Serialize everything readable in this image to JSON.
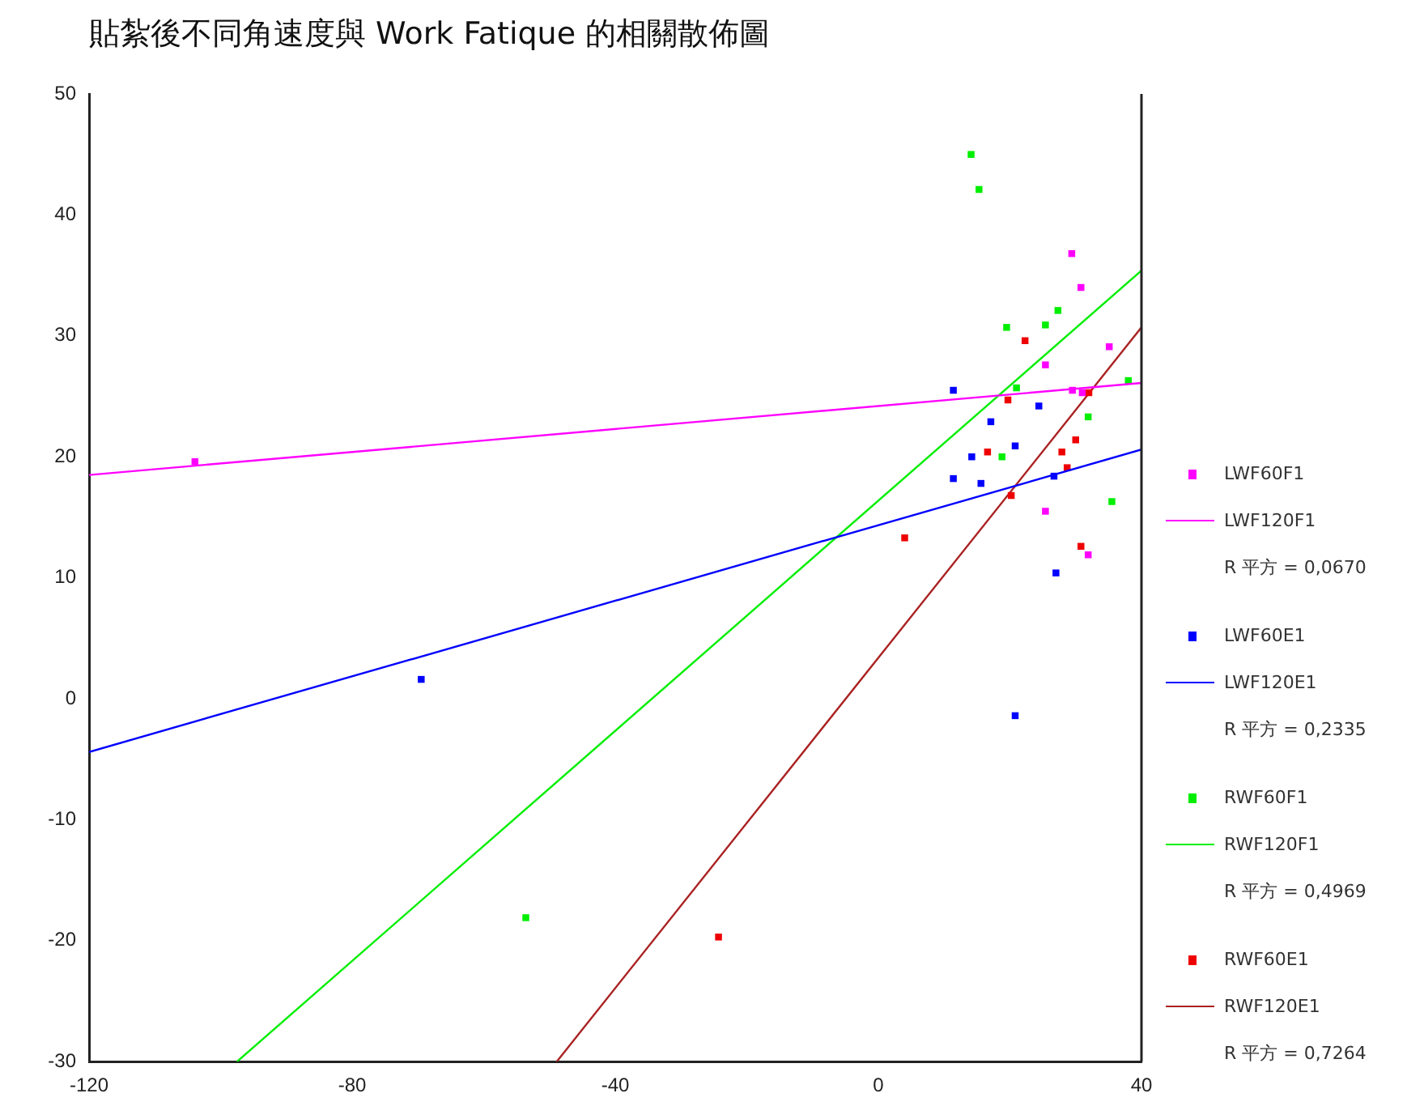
{
  "chart_data": {
    "type": "scatter",
    "title": "貼紮後不同角速度與 Work Fatique 的相關散佈圖",
    "xlim": [
      -120,
      40
    ],
    "xticks": [
      -120,
      -80,
      -40,
      0,
      40
    ],
    "ylim": [
      -30,
      50
    ],
    "yticks": [
      -30,
      -20,
      -10,
      0,
      10,
      20,
      30,
      40,
      50
    ],
    "grid": false,
    "legend": "right",
    "marker": "square",
    "annotations": [
      "R 平方 = 0,0670",
      "R 平方 = 0,2335",
      "R 平方 = 0,4969",
      "R 平方 = 0,7264"
    ],
    "series": [
      {
        "name": "LWF60F1",
        "color": "#ff00ff",
        "x": [
          -103.9,
          29.4,
          30.8,
          35.1,
          25.4,
          29.5,
          31,
          25.4,
          31.9
        ],
        "values": [
          19.6,
          36.8,
          34.0,
          29.1,
          27.6,
          25.5,
          25.3,
          15.5,
          11.9
        ]
      },
      {
        "name": "LWF120F1",
        "type": "line",
        "marker": "none",
        "color": "#ff00ff",
        "x": [
          -120,
          40
        ],
        "values": [
          18.5,
          26.1
        ]
      },
      {
        "name": "LWF60E1",
        "color": "#0000ff",
        "x": [
          -69.5,
          11.4,
          24.4,
          17.1,
          20.8,
          14.2,
          11.4,
          15.6,
          26.7,
          27.0,
          20.8
        ],
        "values": [
          1.6,
          25.5,
          24.2,
          22.9,
          20.9,
          20.0,
          18.2,
          17.8,
          18.4,
          10.4,
          -1.4
        ]
      },
      {
        "name": "LWF120E1",
        "type": "line",
        "marker": "none",
        "color": "#0000ff",
        "x": [
          -120,
          40
        ],
        "values": [
          -4.4,
          20.6
        ]
      },
      {
        "name": "RWF60F1",
        "color": "#00ee00",
        "x": [
          -53.6,
          14.1,
          15.3,
          27.3,
          25.4,
          19.5,
          21.0,
          38.0,
          31.9,
          18.8,
          35.5
        ],
        "values": [
          -18.1,
          45.0,
          42.1,
          32.1,
          30.9,
          30.7,
          25.7,
          26.3,
          23.3,
          20.0,
          16.3
        ]
      },
      {
        "name": "RWF120F1",
        "type": "line",
        "marker": "none",
        "color": "#00ee00",
        "x": [
          -97.5,
          40
        ],
        "values": [
          -30,
          35.4
        ]
      },
      {
        "name": "RWF60E1",
        "color": "#ee0000",
        "x": [
          -24.3,
          22.3,
          19.7,
          32.0,
          30.0,
          16.6,
          27.9,
          28.7,
          20.2,
          4.0,
          30.8
        ],
        "values": [
          -19.7,
          29.6,
          24.7,
          25.3,
          21.4,
          20.4,
          20.4,
          19.1,
          16.8,
          13.3,
          12.6
        ]
      },
      {
        "name": "RWF120E1",
        "type": "line",
        "marker": "none",
        "color": "#aa2222",
        "x": [
          -48.9,
          40
        ],
        "values": [
          -30,
          30.7
        ]
      }
    ]
  }
}
